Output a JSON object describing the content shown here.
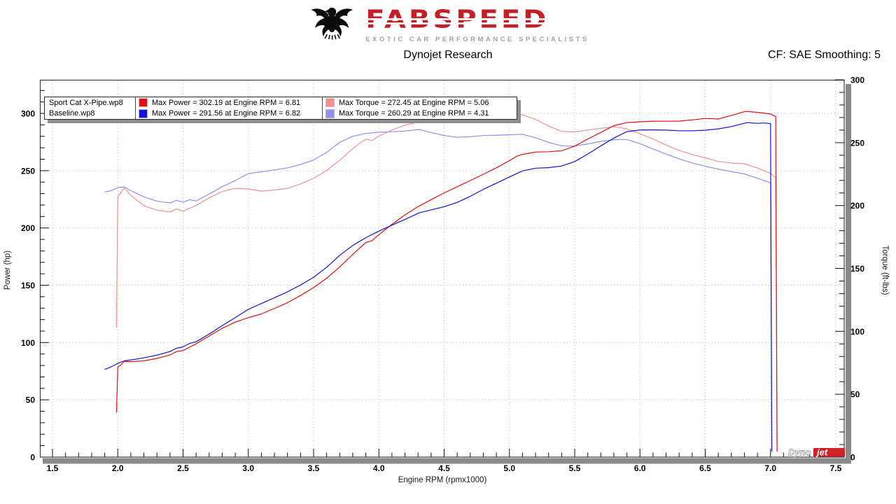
{
  "header": {
    "brand": "FABSPEED",
    "tagline": "EXOTIC CAR PERFORMANCE SPECIALISTS",
    "title": "Dynojet Research",
    "correction_label": "CF: SAE Smoothing: 5"
  },
  "legend": {
    "rows": [
      {
        "file": "Sport Cat X-Pipe.wp8",
        "power_label": "Max Power = 302.19 at Engine RPM = 6.81",
        "torque_label": "Max Torque = 272.45 at Engine RPM = 5.06",
        "power_color": "#e21010",
        "torque_color": "#f19191"
      },
      {
        "file": "Baseline.wp8",
        "power_label": "Max Power = 291.56 at Engine RPM = 6.82",
        "torque_label": "Max Torque = 260.29 at Engine RPM = 4.31",
        "power_color": "#1212d8",
        "torque_color": "#9191ee"
      }
    ]
  },
  "watermark": {
    "dyno": "Dyno",
    "jet": "jet"
  },
  "chart_data": {
    "type": "line",
    "title": "Dynojet Research",
    "correction": "CF: SAE Smoothing: 5",
    "legend_position": "top-left",
    "grid": true,
    "grid_color": "#c9c9c9",
    "axes": {
      "x": {
        "label": "Engine RPM (rpmx1000)",
        "min": 1.5,
        "max": 7.5,
        "major_step": 0.5,
        "minor_step": 0.1
      },
      "left": {
        "label": "Power (hp)",
        "min": 0,
        "max": 300,
        "major_step": 50,
        "minor_step": 10
      },
      "right": {
        "label": "Torque (ft-lbs)",
        "min": 0,
        "max": 300,
        "major_step": 50,
        "minor_step": 10
      }
    },
    "series": [
      {
        "id": "sportcat-torque-line",
        "name": "Sport Cat X-Pipe.wp8 Torque (ft-lbs)",
        "axis": "right",
        "color": "#f19191",
        "max": {
          "value": 272.45,
          "rpm": 5.06
        },
        "points": [
          [
            1.99,
            103
          ],
          [
            2.0,
            207
          ],
          [
            2.02,
            210
          ],
          [
            2.05,
            214
          ],
          [
            2.1,
            208
          ],
          [
            2.2,
            200
          ],
          [
            2.3,
            196.5
          ],
          [
            2.4,
            195
          ],
          [
            2.45,
            197.5
          ],
          [
            2.5,
            195.5
          ],
          [
            2.55,
            198
          ],
          [
            2.6,
            200
          ],
          [
            2.7,
            206
          ],
          [
            2.8,
            211
          ],
          [
            2.9,
            213.5
          ],
          [
            3.0,
            213
          ],
          [
            3.1,
            211.5
          ],
          [
            3.2,
            212.5
          ],
          [
            3.3,
            214
          ],
          [
            3.4,
            217.5
          ],
          [
            3.5,
            222
          ],
          [
            3.6,
            228
          ],
          [
            3.7,
            236
          ],
          [
            3.8,
            245
          ],
          [
            3.85,
            249
          ],
          [
            3.9,
            252.5
          ],
          [
            3.95,
            251.5
          ],
          [
            4.0,
            255
          ],
          [
            4.1,
            260
          ],
          [
            4.2,
            264
          ],
          [
            4.3,
            266.5
          ],
          [
            4.4,
            268
          ],
          [
            4.5,
            269
          ],
          [
            4.6,
            269.5
          ],
          [
            4.7,
            270
          ],
          [
            4.8,
            270.5
          ],
          [
            4.9,
            271
          ],
          [
            5.0,
            272
          ],
          [
            5.06,
            272.5
          ],
          [
            5.1,
            272
          ],
          [
            5.2,
            268.5
          ],
          [
            5.3,
            263.5
          ],
          [
            5.4,
            259.5
          ],
          [
            5.5,
            259
          ],
          [
            5.6,
            260.5
          ],
          [
            5.7,
            261.5
          ],
          [
            5.8,
            262.5
          ],
          [
            5.9,
            260.5
          ],
          [
            6.0,
            256.5
          ],
          [
            6.1,
            252.5
          ],
          [
            6.2,
            248
          ],
          [
            6.3,
            244
          ],
          [
            6.4,
            241
          ],
          [
            6.5,
            238.5
          ],
          [
            6.6,
            235.5
          ],
          [
            6.7,
            234
          ],
          [
            6.8,
            233.2
          ],
          [
            6.9,
            229.5
          ],
          [
            7.0,
            225
          ],
          [
            7.04,
            222
          ],
          [
            7.05,
            4
          ]
        ]
      },
      {
        "id": "baseline-torque-line",
        "name": "Baseline.wp8 Torque (ft-lbs)",
        "axis": "right",
        "color": "#9191ee",
        "max": {
          "value": 260.29,
          "rpm": 4.31
        },
        "points": [
          [
            1.9,
            211
          ],
          [
            1.95,
            212
          ],
          [
            2.0,
            214.5
          ],
          [
            2.05,
            215
          ],
          [
            2.1,
            212
          ],
          [
            2.2,
            207
          ],
          [
            2.3,
            203.5
          ],
          [
            2.4,
            202
          ],
          [
            2.45,
            204
          ],
          [
            2.5,
            202.5
          ],
          [
            2.55,
            204.5
          ],
          [
            2.6,
            203.5
          ],
          [
            2.7,
            209
          ],
          [
            2.8,
            215
          ],
          [
            2.9,
            220
          ],
          [
            3.0,
            225.5
          ],
          [
            3.1,
            227
          ],
          [
            3.2,
            228.5
          ],
          [
            3.3,
            230
          ],
          [
            3.4,
            232.5
          ],
          [
            3.5,
            236
          ],
          [
            3.6,
            242
          ],
          [
            3.7,
            250
          ],
          [
            3.8,
            255
          ],
          [
            3.9,
            257.5
          ],
          [
            4.0,
            258.5
          ],
          [
            4.1,
            259
          ],
          [
            4.2,
            259.5
          ],
          [
            4.31,
            260.3
          ],
          [
            4.4,
            258
          ],
          [
            4.5,
            255.5
          ],
          [
            4.6,
            254
          ],
          [
            4.7,
            254.5
          ],
          [
            4.8,
            255.5
          ],
          [
            4.9,
            256
          ],
          [
            5.0,
            256.5
          ],
          [
            5.1,
            257
          ],
          [
            5.2,
            254.5
          ],
          [
            5.3,
            250.5
          ],
          [
            5.4,
            247.5
          ],
          [
            5.5,
            247
          ],
          [
            5.6,
            248.5
          ],
          [
            5.7,
            250.5
          ],
          [
            5.8,
            252
          ],
          [
            5.9,
            252.5
          ],
          [
            6.0,
            249.5
          ],
          [
            6.1,
            245.5
          ],
          [
            6.2,
            241.5
          ],
          [
            6.3,
            237.5
          ],
          [
            6.4,
            234
          ],
          [
            6.5,
            231
          ],
          [
            6.6,
            228.5
          ],
          [
            6.7,
            226.5
          ],
          [
            6.8,
            224.7
          ],
          [
            6.9,
            221.5
          ],
          [
            6.95,
            220
          ],
          [
            7.0,
            218
          ],
          [
            7.01,
            4
          ]
        ]
      },
      {
        "id": "sportcat-power-line",
        "name": "Sport Cat X-Pipe.wp8 Power (hp)",
        "axis": "left",
        "color": "#e21010",
        "max": {
          "value": 302.19,
          "rpm": 6.81
        },
        "points": [
          [
            1.99,
            39
          ],
          [
            2.0,
            78.8
          ],
          [
            2.02,
            80
          ],
          [
            2.05,
            83.5
          ],
          [
            2.1,
            83.2
          ],
          [
            2.2,
            83.8
          ],
          [
            2.3,
            86
          ],
          [
            2.4,
            89.1
          ],
          [
            2.45,
            92.1
          ],
          [
            2.5,
            93
          ],
          [
            2.55,
            96.1
          ],
          [
            2.6,
            99
          ],
          [
            2.7,
            105.9
          ],
          [
            2.8,
            112.5
          ],
          [
            2.9,
            117.9
          ],
          [
            3.0,
            121.7
          ],
          [
            3.1,
            124.8
          ],
          [
            3.2,
            129.5
          ],
          [
            3.3,
            134.5
          ],
          [
            3.4,
            140.8
          ],
          [
            3.5,
            147.9
          ],
          [
            3.6,
            156.3
          ],
          [
            3.7,
            166.3
          ],
          [
            3.8,
            177.3
          ],
          [
            3.85,
            182.5
          ],
          [
            3.9,
            187.5
          ],
          [
            3.95,
            189.2
          ],
          [
            4.0,
            194.2
          ],
          [
            4.1,
            203
          ],
          [
            4.2,
            211.1
          ],
          [
            4.3,
            218.2
          ],
          [
            4.4,
            224.5
          ],
          [
            4.5,
            230.5
          ],
          [
            4.6,
            236.1
          ],
          [
            4.7,
            241.6
          ],
          [
            4.8,
            247.2
          ],
          [
            4.9,
            252.8
          ],
          [
            5.0,
            258.9
          ],
          [
            5.06,
            262.5
          ],
          [
            5.1,
            264.1
          ],
          [
            5.2,
            265.8
          ],
          [
            5.3,
            265.9
          ],
          [
            5.4,
            266.8
          ],
          [
            5.5,
            271.2
          ],
          [
            5.6,
            277.7
          ],
          [
            5.7,
            283.8
          ],
          [
            5.8,
            289.9
          ],
          [
            5.9,
            292.6
          ],
          [
            6.0,
            293
          ],
          [
            6.1,
            293.2
          ],
          [
            6.2,
            292.8
          ],
          [
            6.3,
            292.7
          ],
          [
            6.4,
            293.7
          ],
          [
            6.5,
            295.2
          ],
          [
            6.6,
            295
          ],
          [
            6.7,
            298.5
          ],
          [
            6.81,
            302.2
          ],
          [
            6.9,
            301.5
          ],
          [
            7.0,
            299.9
          ],
          [
            7.04,
            297.9
          ],
          [
            7.05,
            5
          ]
        ]
      },
      {
        "id": "baseline-power-line",
        "name": "Baseline.wp8 Power (hp)",
        "axis": "left",
        "color": "#1212d8",
        "max": {
          "value": 291.56,
          "rpm": 6.82
        },
        "points": [
          [
            1.9,
            76.3
          ],
          [
            1.95,
            78.7
          ],
          [
            2.0,
            81.7
          ],
          [
            2.05,
            83.9
          ],
          [
            2.1,
            84.8
          ],
          [
            2.2,
            86.7
          ],
          [
            2.3,
            89.1
          ],
          [
            2.4,
            92.3
          ],
          [
            2.45,
            95.2
          ],
          [
            2.5,
            96.4
          ],
          [
            2.55,
            99.3
          ],
          [
            2.6,
            100.7
          ],
          [
            2.7,
            107.4
          ],
          [
            2.8,
            114.6
          ],
          [
            2.9,
            121.5
          ],
          [
            3.0,
            128.8
          ],
          [
            3.1,
            134
          ],
          [
            3.2,
            139.2
          ],
          [
            3.3,
            144.5
          ],
          [
            3.4,
            150.5
          ],
          [
            3.5,
            157.3
          ],
          [
            3.6,
            165.9
          ],
          [
            3.7,
            176.1
          ],
          [
            3.8,
            184.5
          ],
          [
            3.9,
            191.2
          ],
          [
            4.0,
            196.9
          ],
          [
            4.1,
            202.2
          ],
          [
            4.2,
            207.5
          ],
          [
            4.31,
            213.6
          ],
          [
            4.4,
            216.1
          ],
          [
            4.5,
            218.9
          ],
          [
            4.6,
            222.5
          ],
          [
            4.7,
            227.7
          ],
          [
            4.8,
            233.5
          ],
          [
            4.9,
            238.8
          ],
          [
            5.0,
            244.2
          ],
          [
            5.1,
            249.5
          ],
          [
            5.2,
            252
          ],
          [
            5.3,
            252.8
          ],
          [
            5.4,
            254.5
          ],
          [
            5.5,
            258.6
          ],
          [
            5.6,
            265
          ],
          [
            5.7,
            271.9
          ],
          [
            5.8,
            278.3
          ],
          [
            5.9,
            283.6
          ],
          [
            6.0,
            285
          ],
          [
            6.1,
            285.1
          ],
          [
            6.2,
            285.1
          ],
          [
            6.3,
            284.9
          ],
          [
            6.4,
            285.2
          ],
          [
            6.5,
            285.9
          ],
          [
            6.6,
            287.1
          ],
          [
            6.7,
            288.9
          ],
          [
            6.82,
            291.6
          ],
          [
            6.9,
            291
          ],
          [
            6.95,
            291.2
          ],
          [
            7.0,
            290.5
          ],
          [
            7.01,
            5
          ]
        ]
      }
    ]
  }
}
